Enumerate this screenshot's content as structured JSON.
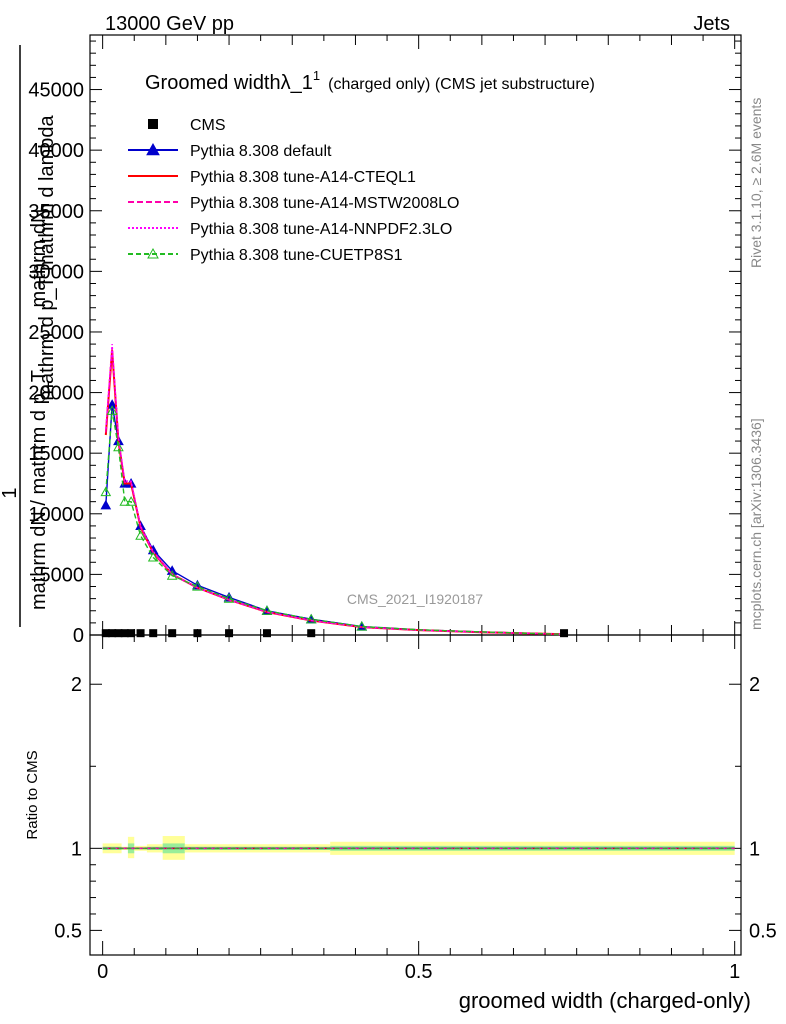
{
  "header": {
    "left": "13000 GeV pp",
    "right": "Jets"
  },
  "side_labels": {
    "rivet": "Rivet 3.1.10, ≥ 2.6M events",
    "mcplots": "mcplots.cern.ch [arXiv:1306.3436]"
  },
  "chart_data": {
    "type": "line",
    "title_main": "Groomed width",
    "title_symbol": "λ_1",
    "title_superscript": "1",
    "title_rest": "(charged only) (CMS jet substructure)",
    "analysis_tag": "CMS_2021_I1920187",
    "xlabel": "groomed width (charged-only)",
    "ylabel_top_lines": [
      "mathrm dN",
      "mathrm d p_T mathrm d lambda"
    ],
    "ylabel_num": "1",
    "ylabel_den": "mathrm dN / mathrm d p_T",
    "ratio_ylabel": "Ratio to CMS",
    "xlim": [
      -0.02,
      1.01
    ],
    "ylim": [
      0,
      49500
    ],
    "ratio_ylim": [
      0.35,
      2.3
    ],
    "x_ticks": [
      {
        "v": 0,
        "label": "0"
      },
      {
        "v": 0.5,
        "label": "0.5"
      },
      {
        "v": 1,
        "label": "1"
      }
    ],
    "y_ticks": [
      {
        "v": 0,
        "label": "0"
      },
      {
        "v": 5000,
        "label": "5000"
      },
      {
        "v": 10000,
        "label": "10000"
      },
      {
        "v": 15000,
        "label": "15000"
      },
      {
        "v": 20000,
        "label": "20000"
      },
      {
        "v": 25000,
        "label": "25000"
      },
      {
        "v": 30000,
        "label": "30000"
      },
      {
        "v": 35000,
        "label": "35000"
      },
      {
        "v": 40000,
        "label": "40000"
      },
      {
        "v": 45000,
        "label": "45000"
      }
    ],
    "ratio_ticks": [
      {
        "v": 0.5,
        "label": "0.5"
      },
      {
        "v": 1,
        "label": "1"
      },
      {
        "v": 2,
        "label": "2"
      }
    ],
    "legend_position": "top-left",
    "grid": false,
    "x": [
      0.005,
      0.015,
      0.025,
      0.035,
      0.045,
      0.06,
      0.08,
      0.11,
      0.15,
      0.2,
      0.26,
      0.33,
      0.41,
      0.5,
      0.6,
      0.7,
      0.73
    ],
    "cms": {
      "name": "CMS",
      "color": "#000000",
      "x": [
        0.005,
        0.015,
        0.025,
        0.035,
        0.045,
        0.06,
        0.08,
        0.11,
        0.15,
        0.2,
        0.26,
        0.33,
        0.73
      ],
      "y": [
        150,
        150,
        150,
        150,
        150,
        150,
        150,
        150,
        150,
        150,
        150,
        150,
        150
      ]
    },
    "series": [
      {
        "name": "Pythia 8.308 default",
        "color": "#0000cc",
        "dash": "",
        "marker": "filled-triangle",
        "y": [
          10700,
          19000,
          16000,
          12500,
          12500,
          9000,
          7000,
          5300,
          4100,
          3100,
          2000,
          1300,
          700,
          430,
          250,
          100,
          60
        ]
      },
      {
        "name": "Pythia 8.308 tune-A14-CTEQL1",
        "color": "#ff0000",
        "dash": "",
        "marker": "none",
        "y": [
          16500,
          23500,
          16000,
          12500,
          12500,
          8900,
          6800,
          5000,
          3900,
          2900,
          1900,
          1200,
          650,
          400,
          230,
          100,
          60
        ]
      },
      {
        "name": "Pythia 8.308 tune-A14-MSTW2008LO",
        "color": "#ff00aa",
        "dash": "6,3",
        "marker": "none",
        "y": [
          16700,
          23700,
          16200,
          12600,
          12600,
          8900,
          6800,
          5000,
          3900,
          2900,
          1900,
          1200,
          650,
          400,
          230,
          100,
          60
        ]
      },
      {
        "name": "Pythia 8.308 tune-A14-NNPDF2.3LO",
        "color": "#ff00ff",
        "dash": "2,2",
        "marker": "none",
        "y": [
          17000,
          24000,
          16300,
          12700,
          12700,
          9000,
          6900,
          5000,
          3900,
          2900,
          1900,
          1200,
          650,
          400,
          230,
          100,
          60
        ]
      },
      {
        "name": "Pythia 8.308 tune-CUETP8S1",
        "color": "#22bb22",
        "dash": "5,3",
        "marker": "open-triangle",
        "y": [
          11800,
          18500,
          15500,
          11000,
          11000,
          8200,
          6400,
          4900,
          4000,
          3000,
          2000,
          1300,
          700,
          430,
          250,
          100,
          60
        ]
      }
    ],
    "ratio_bands": [
      {
        "x0": 0.0,
        "x1": 0.03,
        "lo_outer": 0.97,
        "hi_outer": 1.03,
        "lo_inner": 0.99,
        "hi_inner": 1.01
      },
      {
        "x0": 0.03,
        "x1": 0.04,
        "lo_outer": 0.99,
        "hi_outer": 1.01,
        "lo_inner": 0.995,
        "hi_inner": 1.005
      },
      {
        "x0": 0.04,
        "x1": 0.05,
        "lo_outer": 0.94,
        "hi_outer": 1.07,
        "lo_inner": 0.97,
        "hi_inner": 1.03
      },
      {
        "x0": 0.05,
        "x1": 0.07,
        "lo_outer": 0.985,
        "hi_outer": 1.015,
        "lo_inner": 0.995,
        "hi_inner": 1.005
      },
      {
        "x0": 0.07,
        "x1": 0.095,
        "lo_outer": 0.975,
        "hi_outer": 1.025,
        "lo_inner": 0.99,
        "hi_inner": 1.01
      },
      {
        "x0": 0.095,
        "x1": 0.13,
        "lo_outer": 0.93,
        "hi_outer": 1.075,
        "lo_inner": 0.97,
        "hi_inner": 1.03
      },
      {
        "x0": 0.13,
        "x1": 0.36,
        "lo_outer": 0.975,
        "hi_outer": 1.025,
        "lo_inner": 0.99,
        "hi_inner": 1.01
      },
      {
        "x0": 0.36,
        "x1": 1.0,
        "lo_outer": 0.96,
        "hi_outer": 1.04,
        "lo_inner": 0.985,
        "hi_inner": 1.015
      }
    ]
  }
}
